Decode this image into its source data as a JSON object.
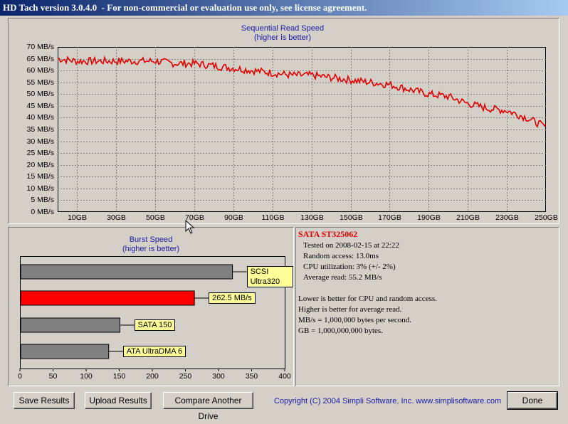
{
  "window": {
    "title": "HD Tach version 3.0.4.0  - For non-commercial or evaluation use only, see license agreement."
  },
  "read_chart": {
    "title_line1": "Sequential Read Speed",
    "title_line2": "(higher is better)",
    "y_ticks": [
      "70 MB/s",
      "65 MB/s",
      "60 MB/s",
      "55 MB/s",
      "50 MB/s",
      "45 MB/s",
      "40 MB/s",
      "35 MB/s",
      "30 MB/s",
      "25 MB/s",
      "20 MB/s",
      "15 MB/s",
      "10 MB/s",
      "5 MB/s",
      "0 MB/s"
    ],
    "x_ticks": [
      "10GB",
      "30GB",
      "50GB",
      "70GB",
      "90GB",
      "110GB",
      "130GB",
      "150GB",
      "170GB",
      "190GB",
      "210GB",
      "230GB",
      "250GB"
    ],
    "line_color": "#e00000"
  },
  "chart_data": [
    {
      "type": "line",
      "title": "Sequential Read Speed (higher is better)",
      "xlabel": "",
      "ylabel": "",
      "x_unit": "GB",
      "y_unit": "MB/s",
      "ylim": [
        0,
        70
      ],
      "xlim": [
        0,
        250
      ],
      "grid": true,
      "series": [
        {
          "x": [
            0,
            10,
            20,
            30,
            40,
            50,
            60,
            70,
            80,
            90,
            100,
            110,
            120,
            130,
            140,
            150,
            160,
            170,
            180,
            190,
            200,
            210,
            220,
            230,
            240,
            250
          ],
          "values": [
            65,
            64,
            64,
            64,
            64,
            64,
            63,
            63,
            62,
            61,
            60,
            59,
            58,
            58,
            57,
            56,
            55,
            54,
            52,
            50,
            49,
            46,
            44,
            43,
            40,
            36
          ]
        }
      ]
    },
    {
      "type": "bar",
      "title": "Burst Speed (higher is better)",
      "orientation": "horizontal",
      "xlim": [
        0,
        400
      ],
      "categories": [
        "SCSI Ultra320",
        "262.5 MB/s",
        "SATA 150",
        "ATA UltraDMA 6"
      ],
      "values": [
        320,
        262.5,
        150,
        133
      ],
      "colors": [
        "#808080",
        "#ff0000",
        "#808080",
        "#808080"
      ]
    }
  ],
  "burst_chart": {
    "title_line1": "Burst Speed",
    "title_line2": "(higher is better)",
    "x_ticks": [
      "0",
      "50",
      "100",
      "150",
      "200",
      "250",
      "300",
      "350",
      "400"
    ],
    "bars": [
      {
        "label": "SCSI Ultra320",
        "value": 320,
        "color": "#808080"
      },
      {
        "label": "262.5 MB/s",
        "value": 262.5,
        "color": "#ff0000"
      },
      {
        "label": "SATA 150",
        "value": 150,
        "color": "#808080"
      },
      {
        "label": "ATA UltraDMA 6",
        "value": 133,
        "color": "#808080"
      }
    ]
  },
  "info": {
    "drive_name": "SATA ST325062",
    "tested_on": "Tested on 2008-02-15 at 22:22",
    "random_access": "Random access: 13.0ms",
    "cpu_util": "CPU utilization: 3% (+/- 2%)",
    "avg_read": "Average read: 55.2 MB/s",
    "note1": "Lower is better for CPU and random access.",
    "note2": "Higher is better for average read.",
    "note3": "MB/s = 1,000,000 bytes per second.",
    "note4": "GB = 1,000,000,000 bytes."
  },
  "buttons": {
    "save": "Save Results",
    "upload": "Upload Results",
    "compare": "Compare Another Drive",
    "done": "Done"
  },
  "copyright": "Copyright (C) 2004 Simpli Software, Inc. www.simplisoftware.com",
  "colors": {
    "titlebar_start": "#0a246a",
    "title_text_blue": "#1a1aa8",
    "drive_name_red": "#e00000",
    "label_bg": "#ffff99"
  }
}
